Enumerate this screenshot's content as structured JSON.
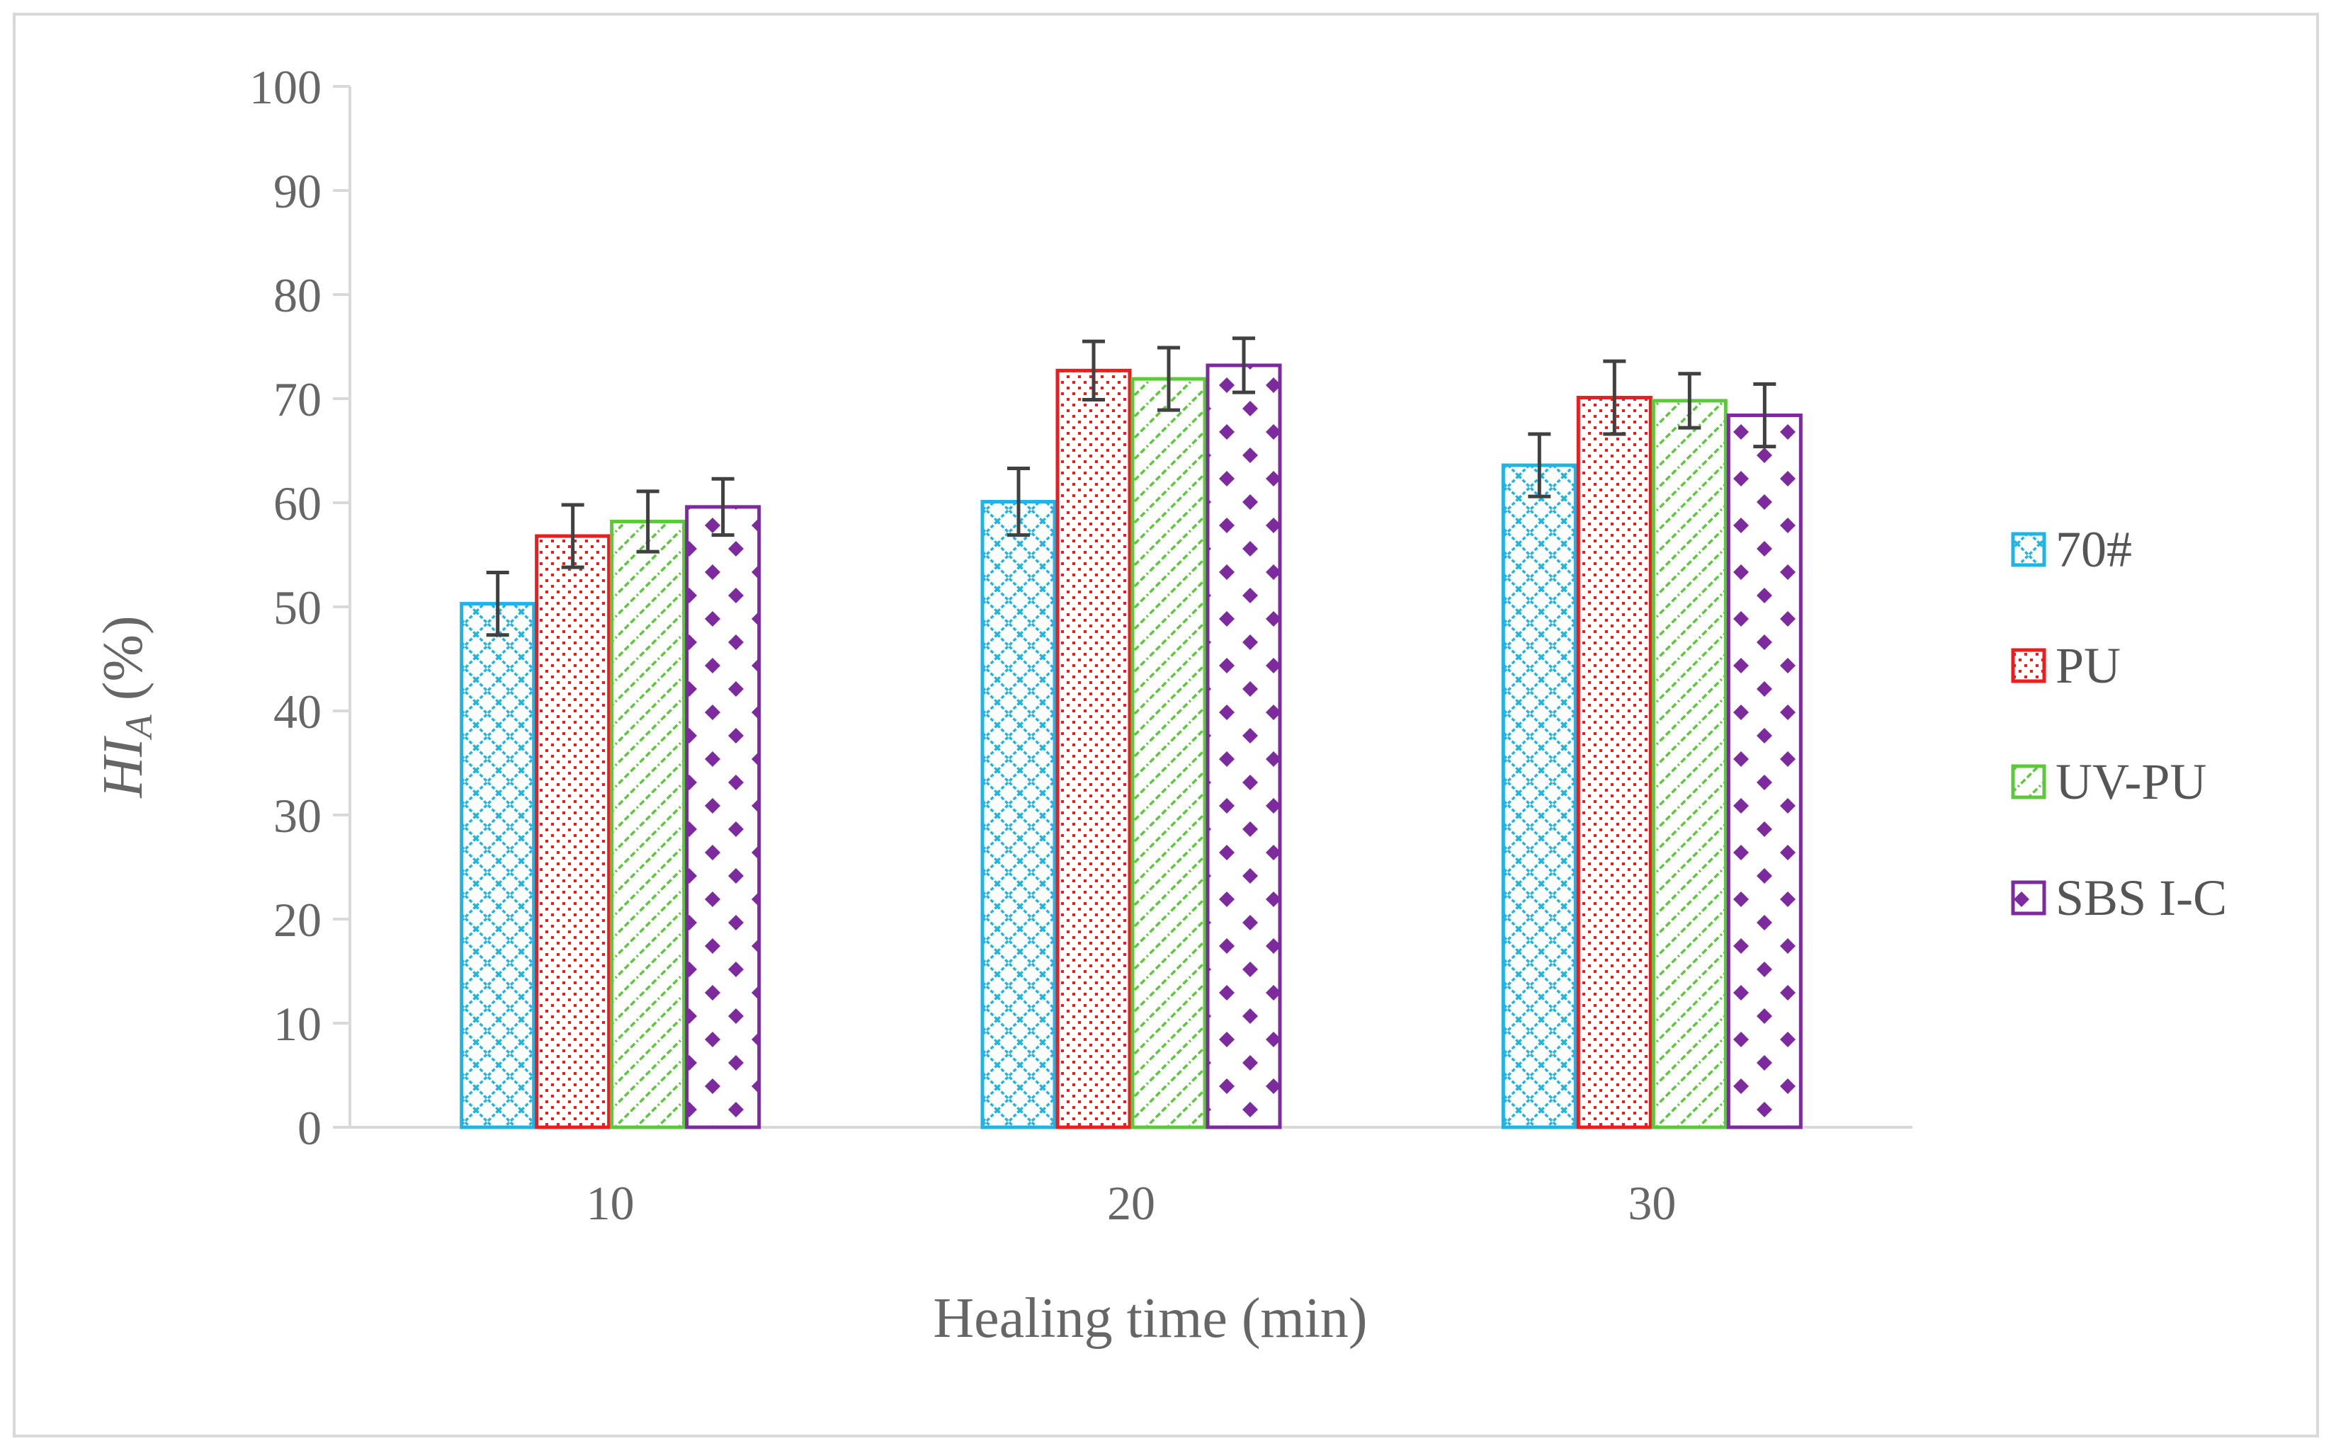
{
  "chart_data": {
    "type": "bar",
    "categories": [
      "10",
      "20",
      "30"
    ],
    "series": [
      {
        "name": "70#",
        "color": "#1fb4e6",
        "pattern": "crosshatch",
        "values": [
          50.3,
          60.1,
          63.6
        ],
        "errors": [
          3.0,
          3.2,
          3.0
        ]
      },
      {
        "name": "PU",
        "color": "#ee1c1c",
        "pattern": "dots",
        "values": [
          56.8,
          72.7,
          70.1
        ],
        "errors": [
          3.0,
          2.8,
          3.5
        ]
      },
      {
        "name": "UV-PU",
        "color": "#5cc83c",
        "pattern": "diagonal",
        "values": [
          58.2,
          71.9,
          69.8
        ],
        "errors": [
          2.9,
          3.0,
          2.6
        ]
      },
      {
        "name": "SBS I-C",
        "color": "#7c2a9e",
        "pattern": "diamonds",
        "values": [
          59.6,
          73.2,
          68.4
        ],
        "errors": [
          2.7,
          2.6,
          3.0
        ]
      }
    ],
    "yticks": [
      "0",
      "10",
      "20",
      "30",
      "40",
      "50",
      "60",
      "70",
      "80",
      "90",
      "100"
    ],
    "ylim": [
      0,
      100
    ],
    "xlabel": "Healing time (min)",
    "ylabel_main": "HI",
    "ylabel_sub": "A",
    "ylabel_unit": " (%)",
    "legend_position": "right",
    "axis_color": "#d9d9d9",
    "error_bar_color": "#404040"
  }
}
